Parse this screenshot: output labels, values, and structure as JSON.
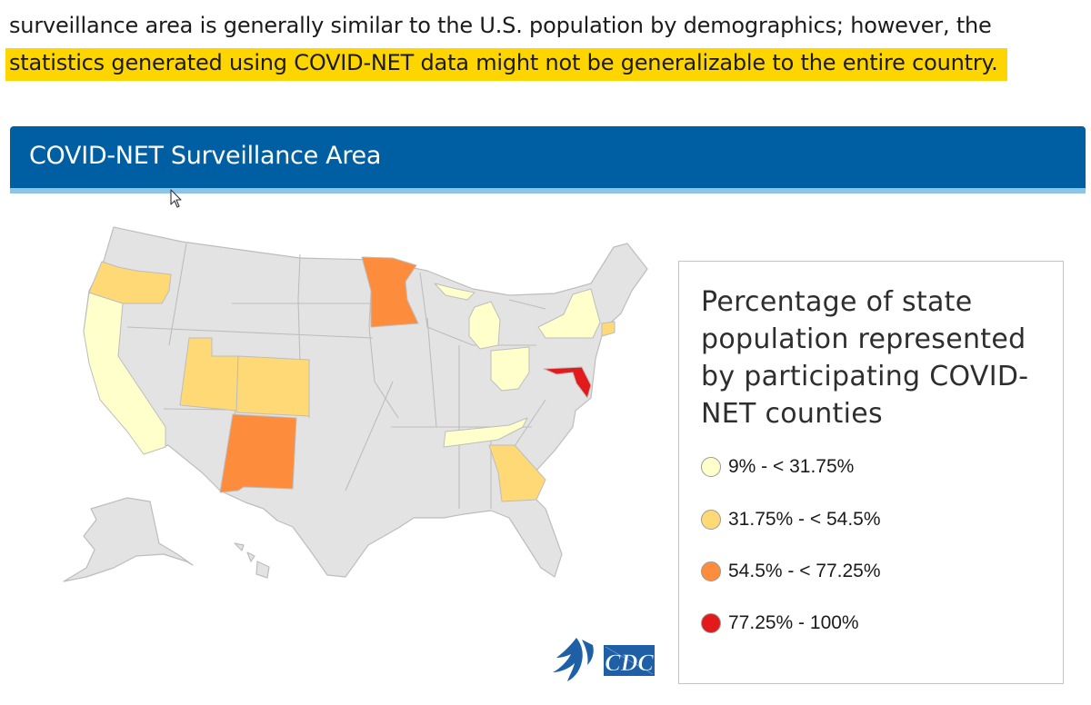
{
  "intro": {
    "line1": "surveillance area is generally similar to the U.S. population by demographics; however, the",
    "line2": "statistics generated using COVID-NET data might not be generalizable to the entire country."
  },
  "panel": {
    "title": "COVID-NET Surveillance Area"
  },
  "legend": {
    "title": "Percentage of state population represented by participating COVID-NET counties",
    "items": [
      {
        "label": "9% - < 31.75%",
        "color": "#ffffcc"
      },
      {
        "label": "31.75% - < 54.5%",
        "color": "#fed976"
      },
      {
        "label": "54.5% - < 77.25%",
        "color": "#fd8d3c"
      },
      {
        "label": "77.25% - 100%",
        "color": "#e31a1c"
      }
    ]
  },
  "map": {
    "default_color": "#e3e3e3",
    "border_color": "#bdbdbd",
    "states": [
      {
        "name": "California",
        "class": 0
      },
      {
        "name": "Oregon",
        "class": 1
      },
      {
        "name": "Utah",
        "class": 1
      },
      {
        "name": "Colorado",
        "class": 1
      },
      {
        "name": "New Mexico",
        "class": 2
      },
      {
        "name": "Minnesota",
        "class": 2
      },
      {
        "name": "Michigan",
        "class": 0
      },
      {
        "name": "Ohio",
        "class": 0
      },
      {
        "name": "Tennessee",
        "class": 0
      },
      {
        "name": "Georgia",
        "class": 1
      },
      {
        "name": "New York",
        "class": 0
      },
      {
        "name": "Connecticut",
        "class": 1
      },
      {
        "name": "Maryland",
        "class": 3
      }
    ]
  },
  "logos": {
    "cdc_text": "CDC"
  }
}
